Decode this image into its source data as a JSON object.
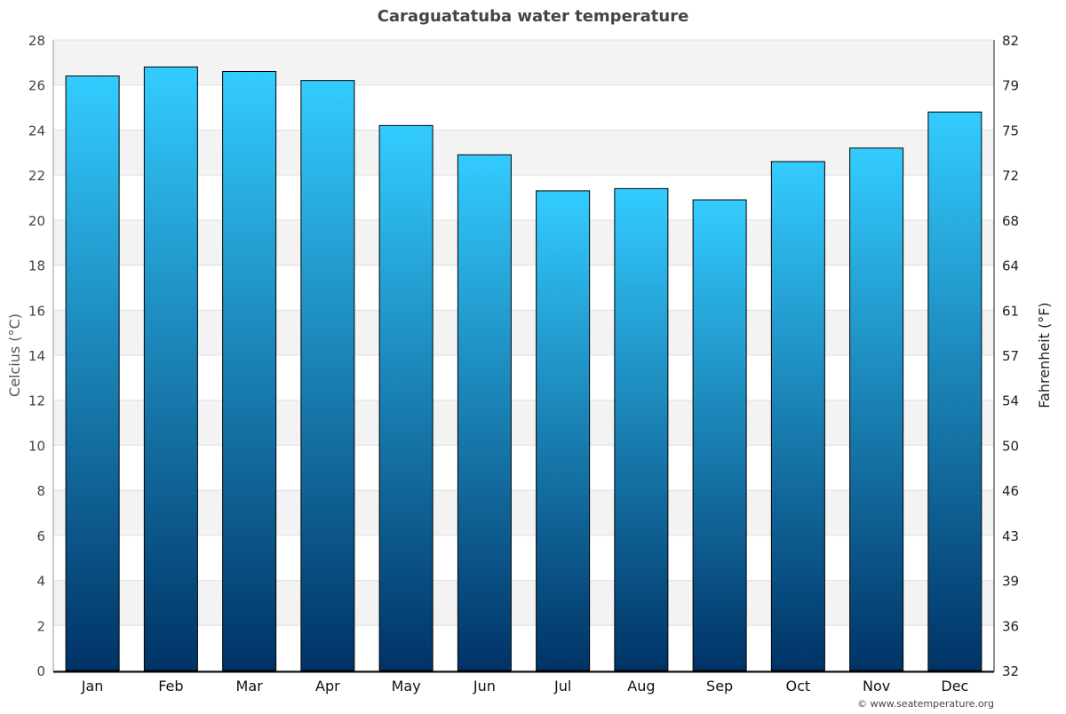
{
  "chart_data": {
    "type": "bar",
    "title": "Caraguatatuba water temperature",
    "ylabel": "Celcius (°C)",
    "ylabel_right": "Fahrenheit (°F)",
    "categories": [
      "Jan",
      "Feb",
      "Mar",
      "Apr",
      "May",
      "Jun",
      "Jul",
      "Aug",
      "Sep",
      "Oct",
      "Nov",
      "Dec"
    ],
    "values": [
      26.4,
      26.8,
      26.6,
      26.2,
      24.2,
      22.9,
      21.3,
      21.4,
      20.9,
      22.6,
      23.2,
      24.8
    ],
    "ylim": [
      0,
      28
    ],
    "yticks": [
      "0",
      "2",
      "4",
      "6",
      "8",
      "10",
      "12",
      "14",
      "16",
      "18",
      "20",
      "22",
      "24",
      "26",
      "28"
    ],
    "yticks_right": [
      "32",
      "36",
      "39",
      "43",
      "46",
      "50",
      "54",
      "57",
      "61",
      "64",
      "68",
      "72",
      "75",
      "79",
      "82"
    ],
    "grid": true,
    "colors": {
      "bar_top": "#33ccff",
      "bar_bottom": "#003366",
      "band": "#f3f3f3",
      "title": "#444444"
    }
  },
  "credit": "© www.seatemperature.org"
}
